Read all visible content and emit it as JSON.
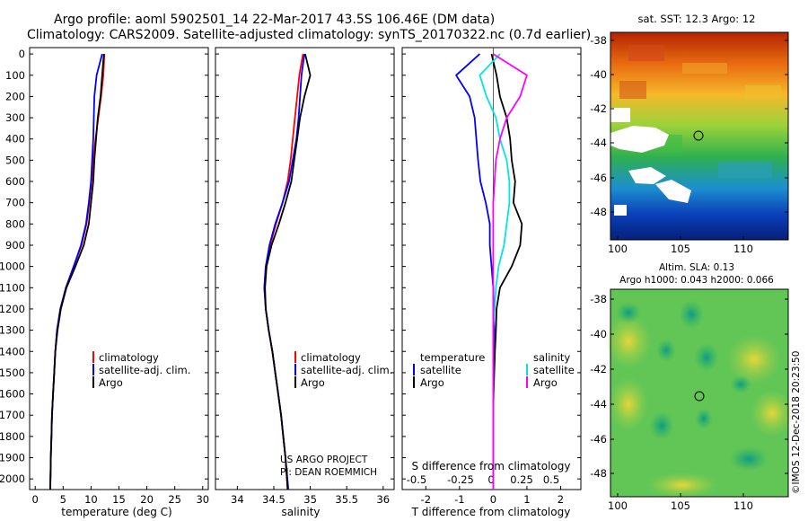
{
  "header": {
    "line1": "Argo profile: aoml 5902501_14 22-Mar-2017 43.5S 106.46E (DM data)",
    "line2": "Climatology: CARS2009. Satellite-adjusted climatology: synTS_20170322.nc (0.7d earlier)"
  },
  "depth_ticks": [
    "0",
    "100",
    "200",
    "300",
    "400",
    "500",
    "600",
    "700",
    "800",
    "900",
    "1000",
    "1100",
    "1200",
    "1300",
    "1400",
    "1500",
    "1600",
    "1700",
    "1800",
    "1900",
    "2000"
  ],
  "colors": {
    "climatology": "#ff0000",
    "satellite": "#0000ff",
    "argo": "#000000",
    "sat_salinity": "#00e5e5",
    "argo_salinity": "#ff00ff"
  },
  "credits": {
    "line1": "US ARGO PROJECT",
    "line2": "PI: DEAN ROEMMICH",
    "imos": "©IMOS 12-Dec-2018 20:23:50"
  },
  "maps": {
    "sst": {
      "title": "sat. SST: 12.3 Argo: 12",
      "yticks": [
        "-38",
        "-40",
        "-42",
        "-44",
        "-46",
        "-48"
      ],
      "xticks": [
        "100",
        "105",
        "110"
      ]
    },
    "sla": {
      "title1": "Altim. SLA: 0.13",
      "title2": "Argo h1000: 0.043 h2000: 0.066",
      "yticks": [
        "-38",
        "-40",
        "-42",
        "-44",
        "-46",
        "-48"
      ],
      "xticks": [
        "100",
        "105",
        "110"
      ]
    }
  },
  "chart_data": [
    {
      "type": "line",
      "xlabel": "temperature (deg C)",
      "ylabel": "",
      "xlim": [
        -1,
        31
      ],
      "ylim": [
        2050,
        -30
      ],
      "xticks": [
        "0",
        "5",
        "10",
        "15",
        "20",
        "25",
        "30"
      ],
      "legend": [
        "climatology",
        "satellite-adj. clim.",
        "Argo"
      ],
      "series": [
        {
          "name": "climatology",
          "color": "#ff0000",
          "x": [
            12.4,
            12.2,
            11.8,
            11.3,
            10.8,
            10.4,
            10.1,
            9.7,
            9.2,
            8.3,
            6.9,
            5.5,
            4.5,
            3.9,
            3.6,
            3.4,
            3.2,
            3.0,
            2.9,
            2.8,
            2.7
          ],
          "y": [
            0,
            100,
            200,
            300,
            400,
            500,
            600,
            700,
            800,
            900,
            1000,
            1100,
            1200,
            1300,
            1400,
            1500,
            1600,
            1700,
            1800,
            1900,
            2050
          ]
        },
        {
          "name": "satellite-adj. clim.",
          "color": "#0000ff",
          "x": [
            12.0,
            11.0,
            10.6,
            10.5,
            10.4,
            10.2,
            10.0,
            9.6,
            9.1,
            8.2,
            6.9,
            5.5,
            4.5,
            3.9,
            3.6,
            3.4,
            3.2,
            3.0,
            2.9,
            2.8,
            2.7
          ],
          "y": [
            0,
            100,
            200,
            300,
            400,
            500,
            600,
            700,
            800,
            900,
            1000,
            1100,
            1200,
            1300,
            1400,
            1500,
            1600,
            1700,
            1800,
            1900,
            2050
          ]
        },
        {
          "name": "Argo",
          "color": "#000000",
          "x": [
            12.3,
            12.0,
            11.7,
            11.2,
            10.9,
            10.6,
            10.4,
            10.0,
            9.6,
            8.7,
            7.2,
            5.6,
            4.6,
            4.0,
            3.6,
            3.4,
            3.2,
            3.0,
            2.9,
            2.8,
            2.7
          ],
          "y": [
            0,
            100,
            200,
            300,
            400,
            500,
            600,
            700,
            800,
            900,
            1000,
            1100,
            1200,
            1300,
            1400,
            1500,
            1600,
            1700,
            1800,
            1900,
            2050
          ]
        }
      ]
    },
    {
      "type": "line",
      "xlabel": "salinity",
      "ylabel": "",
      "xlim": [
        33.7,
        36.15
      ],
      "ylim": [
        2050,
        -30
      ],
      "xticks": [
        "34",
        "34.5",
        "35",
        "35.5",
        "36"
      ],
      "legend": [
        "climatology",
        "satellite-adj. clim.",
        "Argo"
      ],
      "series": [
        {
          "name": "climatology",
          "color": "#ff0000",
          "x": [
            34.9,
            34.85,
            34.82,
            34.79,
            34.76,
            34.73,
            34.69,
            34.62,
            34.53,
            34.45,
            34.39,
            34.37,
            34.39,
            34.43,
            34.48,
            34.52,
            34.56,
            34.6,
            34.63,
            34.66,
            34.69
          ],
          "y": [
            0,
            100,
            200,
            300,
            400,
            500,
            600,
            700,
            800,
            900,
            1000,
            1100,
            1200,
            1300,
            1400,
            1500,
            1600,
            1700,
            1800,
            1900,
            2050
          ]
        },
        {
          "name": "satellite-adj. clim.",
          "color": "#0000ff",
          "x": [
            34.92,
            34.88,
            34.86,
            34.84,
            34.81,
            34.76,
            34.71,
            34.62,
            34.52,
            34.44,
            34.39,
            34.37,
            34.39,
            34.43,
            34.48,
            34.52,
            34.56,
            34.6,
            34.63,
            34.66,
            34.7
          ],
          "y": [
            0,
            100,
            200,
            300,
            400,
            500,
            600,
            700,
            800,
            900,
            1000,
            1100,
            1200,
            1300,
            1400,
            1500,
            1600,
            1700,
            1800,
            1900,
            2050
          ]
        },
        {
          "name": "Argo",
          "color": "#000000",
          "x": [
            34.93,
            35.0,
            34.92,
            34.86,
            34.82,
            34.78,
            34.74,
            34.66,
            34.57,
            34.47,
            34.4,
            34.38,
            34.39,
            34.43,
            34.48,
            34.52,
            34.56,
            34.6,
            34.63,
            34.66,
            34.69
          ],
          "y": [
            0,
            100,
            200,
            300,
            400,
            500,
            600,
            700,
            800,
            900,
            1000,
            1100,
            1200,
            1300,
            1400,
            1500,
            1600,
            1700,
            1800,
            1900,
            2050
          ]
        }
      ]
    },
    {
      "type": "line",
      "xlabel": "T difference from climatology",
      "xlabel_top": "S difference from climatology",
      "xlim": [
        -2.7,
        2.6
      ],
      "ylim": [
        2050,
        -30
      ],
      "xticks": [
        "-2",
        "-1",
        "0",
        "1",
        "2"
      ],
      "xticks_top": [
        "-0.5",
        "-0.25",
        "0",
        "0.25",
        "0.5"
      ],
      "legend_left_title": "temperature",
      "legend_right_title": "salinity",
      "legend": [
        "satellite",
        "Argo"
      ],
      "series": [
        {
          "name": "satellite",
          "group": "temperature",
          "color": "#0000ff",
          "x": [
            -0.4,
            -1.1,
            -0.7,
            -0.55,
            -0.5,
            -0.45,
            -0.38,
            -0.22,
            -0.1,
            -0.1,
            -0.05,
            0,
            0.02,
            0.03,
            0.02,
            0.01,
            0,
            0,
            0,
            0,
            0
          ],
          "y": [
            0,
            100,
            200,
            300,
            400,
            500,
            600,
            700,
            800,
            900,
            1000,
            1100,
            1200,
            1300,
            1400,
            1500,
            1600,
            1700,
            1800,
            1900,
            2050
          ]
        },
        {
          "name": "Argo",
          "group": "temperature",
          "color": "#000000",
          "x": [
            -0.05,
            0.1,
            0.2,
            0.4,
            0.5,
            0.55,
            0.65,
            0.6,
            0.85,
            0.8,
            0.55,
            0.2,
            0.1,
            0.08,
            0.05,
            0.03,
            0.01,
            0,
            0,
            0,
            0
          ],
          "y": [
            0,
            100,
            200,
            300,
            400,
            500,
            600,
            700,
            800,
            900,
            1000,
            1100,
            1200,
            1300,
            1400,
            1500,
            1600,
            1700,
            1800,
            1900,
            2050
          ]
        },
        {
          "name": "satellite",
          "group": "salinity",
          "color": "#00e5e5",
          "x": [
            0.05,
            -0.1,
            -0.05,
            0.02,
            0.05,
            0.1,
            0.12,
            0.12,
            0.1,
            0.08,
            0.04,
            0.02,
            0.01,
            0.0,
            0.0,
            0.0,
            0.0,
            0.0,
            0.0,
            0.0,
            0.0
          ],
          "y": [
            0,
            100,
            200,
            300,
            400,
            500,
            600,
            700,
            800,
            900,
            1000,
            1100,
            1200,
            1300,
            1400,
            1500,
            1600,
            1700,
            1800,
            1900,
            2050
          ]
        },
        {
          "name": "Argo",
          "group": "salinity",
          "color": "#ff00ff",
          "x": [
            0.0,
            0.25,
            0.2,
            0.1,
            0.05,
            0.02,
            0.01,
            0.0,
            0.0,
            0.0,
            0.0,
            0.0,
            0.0,
            0.0,
            0.0,
            0.0,
            0.0,
            0.0,
            0.0,
            0.0,
            0.0
          ],
          "y": [
            0,
            100,
            200,
            300,
            400,
            500,
            600,
            700,
            800,
            900,
            1000,
            1100,
            1200,
            1300,
            1400,
            1500,
            1600,
            1700,
            1800,
            1900,
            2050
          ]
        }
      ]
    }
  ]
}
